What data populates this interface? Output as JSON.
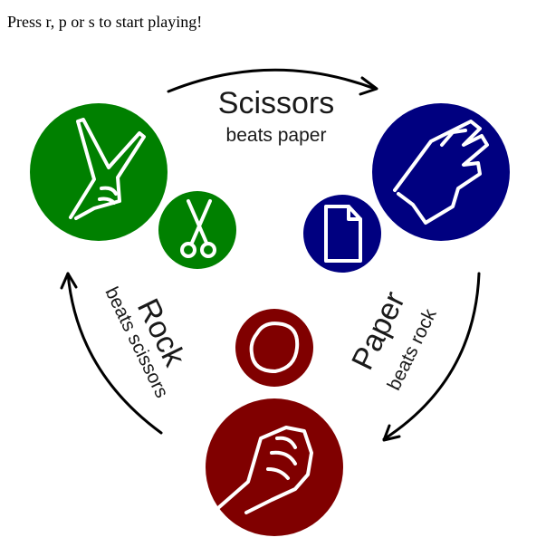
{
  "instruction": "Press r, p or s to start playing!",
  "colors": {
    "scissors": "#008000",
    "paper": "#000080",
    "rock": "#800000",
    "symbol_stroke": "#ffffff",
    "arrow": "#000000"
  },
  "labels": {
    "scissors_title": "Scissors",
    "scissors_sub": "beats paper",
    "paper_title": "Paper",
    "paper_sub": "beats rock",
    "rock_title": "Rock",
    "rock_sub": "beats scissors"
  },
  "icons": {
    "scissors_hand": "victory-hand-icon",
    "scissors_symbol": "scissors-icon",
    "paper_hand": "open-hand-icon",
    "paper_symbol": "document-icon",
    "rock_hand": "fist-icon",
    "rock_symbol": "stone-icon"
  }
}
